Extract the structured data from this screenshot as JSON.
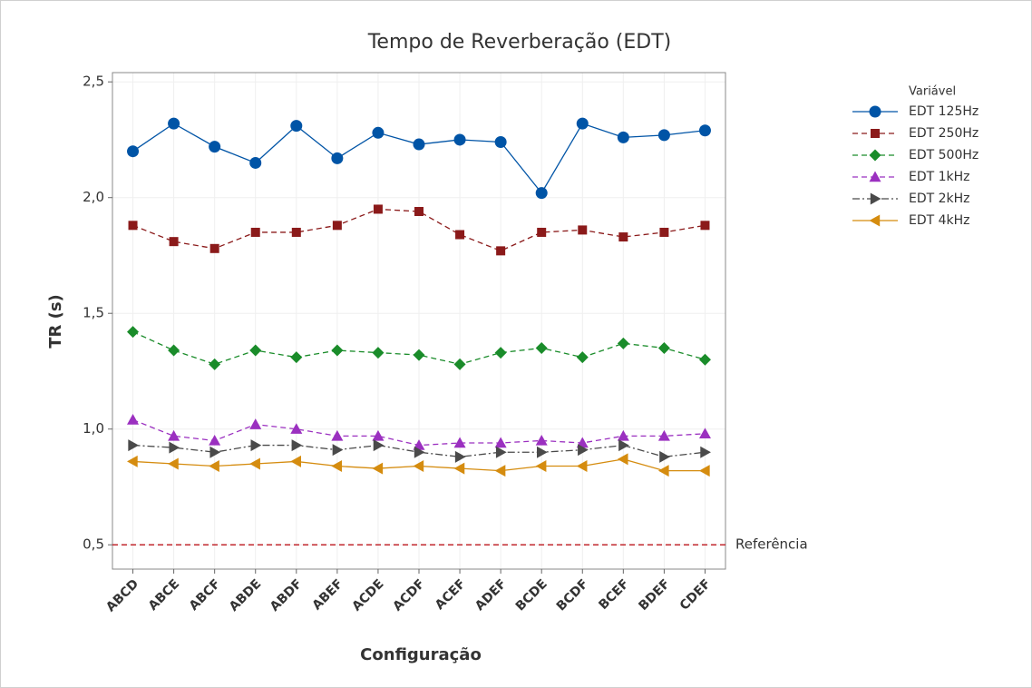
{
  "chart_data": {
    "type": "line",
    "title": "Tempo de Reverberação (EDT)",
    "x_label": "Configuração",
    "y_label": "TR (s)",
    "legend_title": "Variável",
    "legend": "right",
    "grid": true,
    "categories": [
      "ABCD",
      "ABCE",
      "ABCF",
      "ABDE",
      "ABDF",
      "ABEF",
      "ACDE",
      "ACDF",
      "ACEF",
      "ADEF",
      "BCDE",
      "BCDF",
      "BCEF",
      "BDEF",
      "CDEF"
    ],
    "ylim": [
      0.395,
      2.54
    ],
    "yticks": [
      {
        "value": 0.5,
        "label": "0,5"
      },
      {
        "value": 1.0,
        "label": "1,0"
      },
      {
        "value": 1.5,
        "label": "1,5"
      },
      {
        "value": 2.0,
        "label": "2,0"
      },
      {
        "value": 2.5,
        "label": "2,5"
      }
    ],
    "reference": {
      "value": 0.5,
      "label": "Referência",
      "color": "#c0272d"
    },
    "series": [
      {
        "name": "EDT 125Hz",
        "color": "#0054a6",
        "marker": "circle",
        "dash": "solid",
        "values": [
          2.2,
          2.32,
          2.22,
          2.15,
          2.31,
          2.17,
          2.28,
          2.23,
          2.25,
          2.24,
          2.02,
          2.32,
          2.26,
          2.27,
          2.29
        ]
      },
      {
        "name": "EDT 250Hz",
        "color": "#8b1a1a",
        "marker": "square",
        "dash": "dashed",
        "values": [
          1.88,
          1.81,
          1.78,
          1.85,
          1.85,
          1.88,
          1.95,
          1.94,
          1.84,
          1.77,
          1.85,
          1.86,
          1.83,
          1.85,
          1.88
        ]
      },
      {
        "name": "EDT 500Hz",
        "color": "#1a8c2a",
        "marker": "diamond",
        "dash": "dashed",
        "values": [
          1.42,
          1.34,
          1.28,
          1.34,
          1.31,
          1.34,
          1.33,
          1.32,
          1.28,
          1.33,
          1.35,
          1.31,
          1.37,
          1.35,
          1.3
        ]
      },
      {
        "name": "EDT 1kHz",
        "color": "#9b30c0",
        "marker": "triangle-up",
        "dash": "dashed",
        "values": [
          1.04,
          0.97,
          0.95,
          1.02,
          1.0,
          0.97,
          0.97,
          0.93,
          0.94,
          0.94,
          0.95,
          0.94,
          0.97,
          0.97,
          0.98
        ]
      },
      {
        "name": "EDT 2kHz",
        "color": "#4a4a4a",
        "marker": "triangle-right",
        "dash": "dashdot",
        "values": [
          0.93,
          0.92,
          0.9,
          0.93,
          0.93,
          0.91,
          0.93,
          0.9,
          0.88,
          0.9,
          0.9,
          0.91,
          0.93,
          0.88,
          0.9
        ]
      },
      {
        "name": "EDT 4kHz",
        "color": "#d58c0f",
        "marker": "triangle-left",
        "dash": "solid",
        "values": [
          0.86,
          0.85,
          0.84,
          0.85,
          0.86,
          0.84,
          0.83,
          0.84,
          0.83,
          0.82,
          0.84,
          0.84,
          0.87,
          0.82,
          0.82
        ]
      }
    ]
  }
}
